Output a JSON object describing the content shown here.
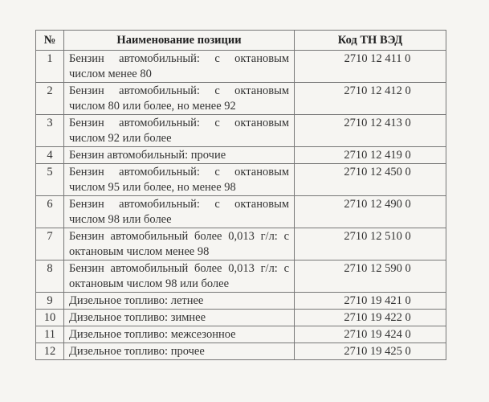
{
  "table": {
    "headers": [
      "№",
      "Наименование позиции",
      "Код ТН ВЭД"
    ],
    "rows": [
      {
        "num": "1",
        "name": "Бензин автомобильный: с октановым числом менее 80",
        "code": "2710 12 411 0"
      },
      {
        "num": "2",
        "name": "Бензин автомобильный: с октановым числом 80 или более, но менее 92",
        "code": "2710 12 412 0"
      },
      {
        "num": "3",
        "name": "Бензин автомобильный: с октановым числом 92 или более",
        "code": "2710 12 413 0"
      },
      {
        "num": "4",
        "name": "Бензин автомобильный: прочие",
        "code": "2710 12 419 0"
      },
      {
        "num": "5",
        "name": "Бензин автомобильный: с октановым числом 95 или более, но менее 98",
        "code": "2710 12 450 0"
      },
      {
        "num": "6",
        "name": "Бензин автомобильный: с октановым числом 98 или более",
        "code": "2710 12 490 0"
      },
      {
        "num": "7",
        "name": "Бензин автомобильный более 0,013 г/л: с октановым числом менее 98",
        "code": "2710 12 510 0"
      },
      {
        "num": "8",
        "name": "Бензин автомобильный более 0,013 г/л: с октановым числом 98 или более",
        "code": "2710 12 590 0"
      },
      {
        "num": "9",
        "name": "Дизельное топливо: летнее",
        "code": "2710 19 421 0"
      },
      {
        "num": "10",
        "name": "Дизельное топливо: зимнее",
        "code": "2710 19 422 0"
      },
      {
        "num": "11",
        "name": "Дизельное топливо: межсезонное",
        "code": "2710 19 424 0"
      },
      {
        "num": "12",
        "name": "Дизельное топливо: прочее",
        "code": "2710 19 425 0"
      }
    ]
  }
}
